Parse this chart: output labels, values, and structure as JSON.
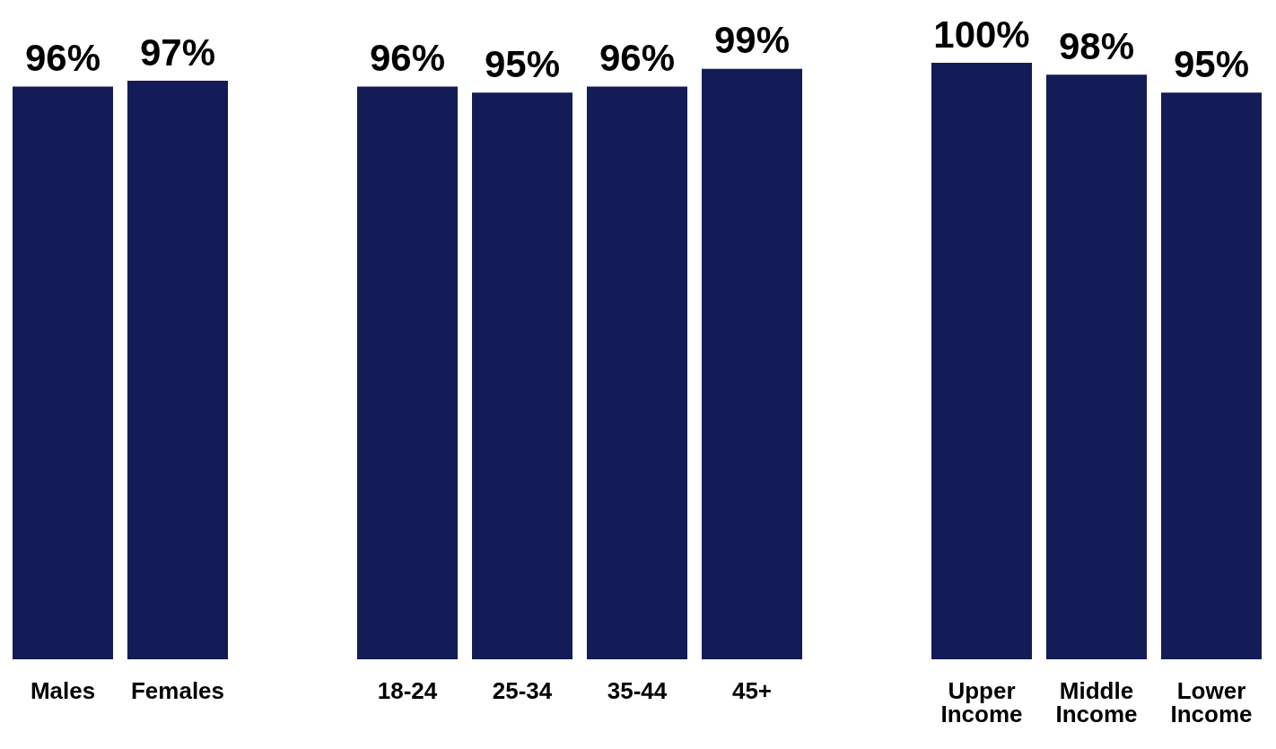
{
  "chart_data": {
    "type": "bar",
    "categories": [
      "Males",
      "Females",
      null,
      "18-24",
      "25-34",
      "35-44",
      "45+",
      null,
      "Upper Income",
      "Middle Income",
      "Lower Income"
    ],
    "values": [
      96,
      97,
      null,
      96,
      95,
      96,
      99,
      null,
      100,
      98,
      95
    ],
    "value_labels": [
      "96%",
      "97%",
      null,
      "96%",
      "95%",
      "96%",
      "99%",
      null,
      "100%",
      "98%",
      "95%"
    ],
    "color": "#131c57",
    "grid": false,
    "legend": false
  }
}
